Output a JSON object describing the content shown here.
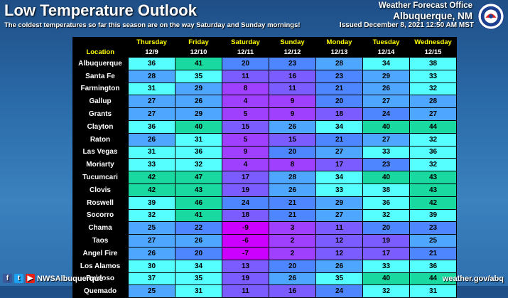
{
  "header": {
    "title": "Low Temperature Outlook",
    "subtitle": "The coldest temperatures so far this season are on the way Saturday and Sunday mornings!",
    "office_line1": "Weather Forecast Office",
    "office_line2": "Albuquerque, NM",
    "issued": "Issued December 8, 2021 12:50 AM MST",
    "logo_icon": "nws-logo-icon"
  },
  "table": {
    "location_header": "Location",
    "days": [
      {
        "name": "Thursday",
        "date": "12/9"
      },
      {
        "name": "Friday",
        "date": "12/10"
      },
      {
        "name": "Saturday",
        "date": "12/11"
      },
      {
        "name": "Sunday",
        "date": "12/12"
      },
      {
        "name": "Monday",
        "date": "12/13"
      },
      {
        "name": "Tuesday",
        "date": "12/14"
      },
      {
        "name": "Wednesday",
        "date": "12/15"
      }
    ],
    "rows": [
      {
        "location": "Albuquerque",
        "temps": [
          36,
          41,
          20,
          23,
          28,
          34,
          38
        ]
      },
      {
        "location": "Santa Fe",
        "temps": [
          28,
          35,
          11,
          16,
          23,
          29,
          33
        ]
      },
      {
        "location": "Farmington",
        "temps": [
          31,
          29,
          8,
          11,
          21,
          26,
          32
        ]
      },
      {
        "location": "Gallup",
        "temps": [
          27,
          26,
          4,
          9,
          20,
          27,
          28
        ]
      },
      {
        "location": "Grants",
        "temps": [
          27,
          29,
          5,
          9,
          18,
          24,
          27
        ]
      },
      {
        "location": "Clayton",
        "temps": [
          36,
          40,
          15,
          26,
          34,
          40,
          44
        ]
      },
      {
        "location": "Raton",
        "temps": [
          26,
          31,
          5,
          15,
          21,
          27,
          32
        ]
      },
      {
        "location": "Las Vegas",
        "temps": [
          31,
          36,
          9,
          20,
          27,
          33,
          36
        ]
      },
      {
        "location": "Moriarty",
        "temps": [
          33,
          32,
          4,
          8,
          17,
          23,
          32
        ]
      },
      {
        "location": "Tucumcari",
        "temps": [
          42,
          47,
          17,
          28,
          34,
          40,
          43
        ]
      },
      {
        "location": "Clovis",
        "temps": [
          42,
          43,
          19,
          26,
          33,
          38,
          43
        ]
      },
      {
        "location": "Roswell",
        "temps": [
          39,
          46,
          24,
          21,
          29,
          36,
          42
        ]
      },
      {
        "location": "Socorro",
        "temps": [
          32,
          41,
          18,
          21,
          27,
          32,
          39
        ]
      },
      {
        "location": "Chama",
        "temps": [
          25,
          22,
          -9,
          3,
          11,
          20,
          23
        ]
      },
      {
        "location": "Taos",
        "temps": [
          27,
          26,
          -6,
          2,
          12,
          19,
          25
        ]
      },
      {
        "location": "Angel Fire",
        "temps": [
          26,
          20,
          -7,
          2,
          12,
          17,
          21
        ]
      },
      {
        "location": "Los Alamos",
        "temps": [
          30,
          34,
          13,
          20,
          26,
          33,
          36
        ]
      },
      {
        "location": "Ruidoso",
        "temps": [
          37,
          35,
          19,
          26,
          35,
          40,
          44
        ]
      },
      {
        "location": "Quemado",
        "temps": [
          25,
          31,
          11,
          16,
          24,
          32,
          31
        ]
      }
    ]
  },
  "footer": {
    "social_handle": "NWSAlbuquerque",
    "website": "weather.gov/abq",
    "icons": [
      "facebook-icon",
      "twitter-icon",
      "youtube-icon"
    ]
  },
  "colors": {
    "t_below_0": "#cc00ff",
    "t_0_9": "#a040ff",
    "t_10_19": "#7b5cff",
    "t_20_24": "#4d86ff",
    "t_25_29": "#4fa6ff",
    "t_30_39": "#55ffff",
    "t_40_49": "#19d9a0"
  }
}
